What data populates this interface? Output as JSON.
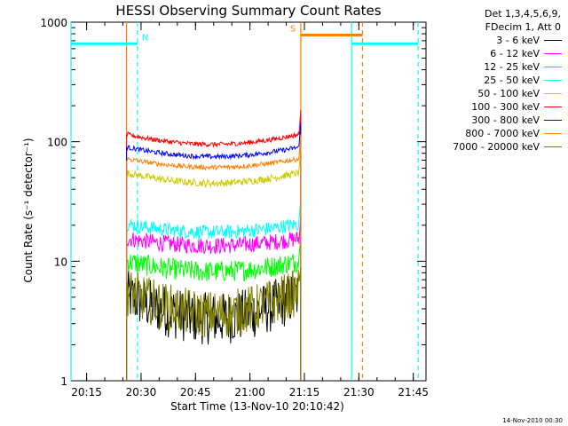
{
  "chart_data": {
    "type": "line",
    "title": "HESSI Observing Summary Count Rates",
    "xlabel": "Start Time (13-Nov-10 20:10:42)",
    "ylabel": "Count Rate (s⁻¹ detector⁻¹)",
    "y_scale": "log",
    "ylim": [
      1,
      1000
    ],
    "xlim": [
      "20:10:42",
      "21:48:30"
    ],
    "y_ticks": [
      "1",
      "10",
      "100",
      "1000"
    ],
    "x_ticks": [
      {
        "t": "20:15",
        "label": "20:15"
      },
      {
        "t": "20:30",
        "label": "20:30"
      },
      {
        "t": "20:45",
        "label": "20:45"
      },
      {
        "t": "21:00",
        "label": "21:00"
      },
      {
        "t": "21:15",
        "label": "21:15"
      },
      {
        "t": "21:30",
        "label": "21:30"
      },
      {
        "t": "21:45",
        "label": "21:45"
      }
    ],
    "legend": {
      "placement": "right",
      "header": [
        "Det 1,3,4,5,6,9,",
        "FDecim 1, Att 0"
      ]
    },
    "series": [
      {
        "name": "3 - 6 keV",
        "color": "#000000",
        "t_start": "20:26:00",
        "t_end": "21:13:30",
        "shape": "dip",
        "edge": 5.2,
        "mid": 3.3,
        "noise": 0.22
      },
      {
        "name": "6 - 12 keV",
        "color": "#ff00ff",
        "t_start": "20:26:00",
        "t_end": "21:13:30",
        "shape": "dip",
        "edge": 15.5,
        "mid": 13.5,
        "noise": 0.07
      },
      {
        "name": "12 - 25 keV",
        "color": "#00ff00",
        "t_start": "20:26:00",
        "t_end": "21:13:30",
        "shape": "dip",
        "edge": 10.0,
        "mid": 8.2,
        "noise": 0.09
      },
      {
        "name": "25 - 50 keV",
        "color": "#00ffff",
        "t_start": "20:26:00",
        "t_end": "21:13:30",
        "shape": "dip",
        "edge": 20.5,
        "mid": 17.5,
        "noise": 0.06
      },
      {
        "name": "50 - 100 keV",
        "color": "#cccc00",
        "t_start": "20:26:00",
        "t_end": "21:13:30",
        "shape": "dip",
        "edge": 55,
        "mid": 45,
        "noise": 0.03
      },
      {
        "name": "100 - 300 keV",
        "color": "#ff0000",
        "t_start": "20:26:00",
        "t_end": "21:13:30",
        "shape": "dip",
        "edge": 115,
        "mid": 95,
        "noise": 0.02
      },
      {
        "name": "300 - 800 keV",
        "color": "#0000ff",
        "t_start": "20:26:00",
        "t_end": "21:13:30",
        "shape": "dip",
        "edge": 90,
        "mid": 75,
        "noise": 0.02
      },
      {
        "name": "800 - 7000 keV",
        "color": "#ff7f00",
        "t_start": "20:26:00",
        "t_end": "21:13:30",
        "shape": "dip",
        "edge": 72,
        "mid": 61,
        "noise": 0.02
      },
      {
        "name": "7000 - 20000 keV",
        "color": "#808000",
        "t_start": "20:26:00",
        "t_end": "21:13:30",
        "shape": "dip",
        "edge": 5.6,
        "mid": 3.6,
        "noise": 0.2
      }
    ],
    "bars": [
      {
        "label": "N",
        "color": "#00ffff",
        "t_start": "20:10:42",
        "t_end": "20:29:00",
        "value": 660
      },
      {
        "label": "",
        "color": "#00ffff",
        "t_start": "21:28:00",
        "t_end": "21:46:20",
        "value": 660
      },
      {
        "label": "S",
        "color": "#ff7f00",
        "t_start": "21:14:00",
        "t_end": "21:31:00",
        "value": 780
      }
    ],
    "markers": [
      {
        "color": "#ff7f00",
        "style": "solid",
        "t": "20:26:00"
      },
      {
        "color": "#00ffff",
        "style": "dashed",
        "t": "20:29:00"
      },
      {
        "color": "#ff7f00",
        "style": "solid",
        "t": "21:14:00"
      },
      {
        "color": "#00ffff",
        "style": "solid",
        "t": "21:28:00"
      },
      {
        "color": "#ff7f00",
        "style": "dashed",
        "t": "21:31:00"
      },
      {
        "color": "#00ffff",
        "style": "dashed",
        "t": "21:46:20"
      },
      {
        "color": "#00ffff",
        "style": "solid",
        "t": "20:10:42"
      }
    ]
  },
  "timestamp": "14-Nov-2010 00:30"
}
